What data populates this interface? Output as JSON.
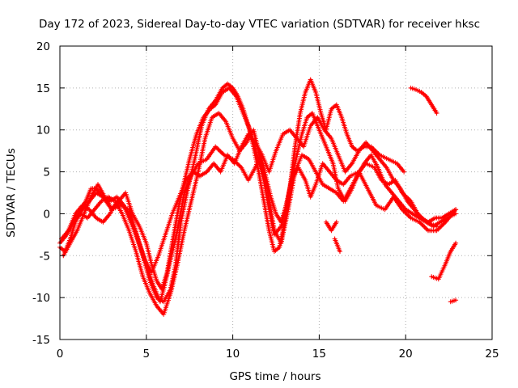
{
  "chart_data": {
    "type": "line",
    "title": "Day 172 of 2023, Sidereal Day-to-day VTEC variation (SDTVAR) for receiver hksc",
    "xlabel": "GPS time / hours",
    "ylabel": "SDTVAR / TECUs",
    "xlim": [
      0,
      25
    ],
    "ylim": [
      -15,
      20
    ],
    "xticks": [
      0,
      5,
      10,
      15,
      20,
      25
    ],
    "yticks": [
      -15,
      -10,
      -5,
      0,
      5,
      10,
      15,
      20
    ],
    "grid": true,
    "marker": "+",
    "color": "#ff0000",
    "series": [
      {
        "name": "track-1",
        "x": [
          0.0,
          0.3,
          0.6,
          0.9,
          1.2,
          1.5,
          1.8,
          2.1,
          2.5,
          3.0,
          3.5,
          4.0,
          4.3,
          4.6,
          5.0,
          5.4,
          5.8,
          6.0,
          6.4,
          6.8,
          7.2,
          7.6,
          8.0,
          8.5,
          9.0,
          9.5,
          10.0,
          10.5,
          10.9,
          11.3,
          11.6,
          11.9,
          12.2,
          12.5,
          12.8,
          13.1,
          13.4,
          13.8,
          14.2,
          14.5,
          14.8,
          15.2,
          15.6,
          16.0,
          16.4,
          16.8,
          17.3,
          17.8,
          18.3,
          18.8,
          19.3,
          19.8,
          20.3,
          20.8,
          21.3,
          21.8,
          22.3,
          22.9
        ],
        "y": [
          -4.0,
          -4.5,
          -3.0,
          -1.0,
          0.5,
          1.5,
          3.0,
          3.0,
          2.0,
          0.5,
          1.0,
          0.5,
          -1.5,
          -3.5,
          -6.0,
          -8.5,
          -10.5,
          -9.0,
          -5.5,
          -2.0,
          2.5,
          4.5,
          6.0,
          6.5,
          8.0,
          7.0,
          6.5,
          5.5,
          4.0,
          5.5,
          7.0,
          4.5,
          2.0,
          0.0,
          -1.0,
          1.0,
          4.0,
          5.5,
          4.0,
          2.0,
          3.5,
          6.0,
          5.0,
          4.0,
          3.5,
          4.5,
          5.0,
          3.0,
          1.0,
          0.5,
          2.0,
          0.5,
          -0.5,
          -1.0,
          -2.0,
          -2.0,
          -1.0,
          0.5
        ]
      },
      {
        "name": "track-2",
        "x": [
          0.0,
          0.4,
          0.8,
          1.2,
          1.6,
          2.0,
          2.4,
          2.8,
          3.2,
          3.6,
          4.0,
          4.4,
          4.8,
          5.2,
          5.6,
          6.0,
          6.4,
          6.8,
          7.2,
          7.6,
          8.0,
          8.4,
          8.8,
          9.2,
          9.6,
          10.0,
          10.4,
          10.8,
          11.2,
          11.6,
          12.0,
          12.4,
          12.8,
          13.2,
          13.6,
          14.0,
          14.4,
          14.8,
          15.2,
          15.6,
          16.0,
          16.4,
          16.8,
          17.2,
          17.6,
          18.0,
          18.4,
          18.8,
          19.2,
          19.6,
          20.0,
          20.4,
          20.8,
          21.2,
          21.6,
          22.0,
          22.4,
          22.9
        ],
        "y": [
          -3.5,
          -2.5,
          -1.0,
          0.0,
          -0.5,
          0.5,
          1.5,
          2.0,
          1.5,
          0.0,
          -2.0,
          -4.5,
          -7.5,
          -9.5,
          -11.0,
          -12.0,
          -9.5,
          -6.0,
          -2.0,
          1.5,
          5.0,
          9.0,
          11.5,
          12.0,
          11.0,
          9.0,
          7.5,
          8.5,
          10.0,
          6.5,
          3.0,
          -2.0,
          -3.5,
          0.5,
          5.0,
          7.0,
          6.5,
          5.0,
          3.5,
          3.0,
          2.5,
          1.5,
          3.0,
          4.5,
          6.0,
          7.0,
          5.5,
          3.5,
          2.5,
          1.5,
          0.5,
          0.0,
          -0.5,
          -1.0,
          -1.5,
          -1.0,
          -0.5,
          0.0
        ]
      },
      {
        "name": "track-3",
        "x": [
          0.2,
          0.6,
          1.0,
          1.4,
          1.8,
          2.2,
          2.6,
          3.0,
          3.4,
          3.8,
          4.2,
          4.6,
          5.0,
          5.3,
          5.6,
          5.9,
          6.2,
          6.5,
          6.8,
          7.1,
          7.5,
          7.9,
          8.3,
          8.7,
          9.0,
          9.4,
          9.8,
          10.2,
          10.6,
          11.0,
          11.4,
          11.8,
          12.1,
          12.4,
          12.8,
          13.2,
          13.6,
          14.0,
          14.3,
          14.6,
          14.9,
          15.2,
          15.5,
          15.8,
          16.1,
          16.5,
          16.9,
          17.3,
          17.7,
          18.2,
          18.6,
          19.0,
          19.4,
          19.8,
          20.3,
          20.7,
          21.2,
          21.8
        ],
        "y": [
          -5.0,
          -3.5,
          -2.0,
          0.0,
          2.0,
          3.5,
          2.0,
          0.5,
          1.5,
          2.5,
          0.0,
          -1.5,
          -3.5,
          -6.0,
          -8.0,
          -9.0,
          -7.0,
          -3.5,
          0.0,
          3.0,
          6.5,
          9.5,
          11.5,
          12.5,
          13.0,
          14.5,
          15.0,
          14.0,
          12.0,
          10.0,
          7.0,
          4.0,
          0.5,
          -2.5,
          -1.5,
          2.0,
          6.0,
          9.5,
          11.5,
          12.0,
          10.5,
          9.0,
          7.5,
          6.0,
          3.0,
          1.5,
          3.0,
          5.0,
          6.0,
          5.5,
          4.0,
          3.5,
          4.0,
          2.5,
          1.5,
          0.0,
          -1.0,
          -1.5
        ]
      },
      {
        "name": "track-4",
        "x": [
          0.5,
          0.9,
          1.3,
          1.7,
          2.1,
          2.5,
          2.9,
          3.3,
          3.7,
          4.0,
          4.4,
          4.8,
          5.2,
          5.6,
          6.0,
          6.4,
          6.7,
          7.0,
          7.4,
          7.8,
          8.2,
          8.6,
          9.0,
          9.4,
          9.7,
          10.0,
          10.3,
          10.6,
          10.9,
          11.2,
          11.5,
          11.8,
          12.1,
          12.4,
          12.7,
          13.0,
          13.3,
          13.6,
          13.9,
          14.2,
          14.5,
          14.8,
          15.1,
          15.4,
          15.7,
          16.0,
          16.3,
          16.6,
          16.9,
          17.2,
          17.6,
          18.0,
          18.5,
          19.0,
          19.5,
          19.9
        ],
        "y": [
          -2.0,
          0.0,
          1.0,
          0.5,
          -0.5,
          -1.0,
          0.0,
          1.5,
          1.0,
          -0.5,
          -2.5,
          -5.0,
          -8.0,
          -10.0,
          -10.5,
          -9.0,
          -6.0,
          -1.0,
          3.0,
          6.5,
          10.5,
          12.5,
          13.5,
          15.0,
          15.5,
          15.0,
          14.0,
          12.5,
          10.5,
          8.0,
          5.0,
          1.5,
          -2.0,
          -4.5,
          -4.0,
          -1.0,
          3.0,
          8.0,
          12.0,
          14.5,
          16.0,
          14.5,
          12.0,
          10.0,
          12.5,
          13.0,
          11.5,
          9.5,
          8.0,
          7.5,
          8.0,
          8.0,
          7.0,
          6.5,
          6.0,
          5.0
        ]
      },
      {
        "name": "track-5",
        "x": [
          0.1,
          0.5,
          0.9,
          1.3,
          1.7,
          2.1,
          2.5,
          2.9,
          3.3,
          3.7,
          4.1,
          4.5,
          4.9,
          5.3,
          5.7,
          6.1,
          6.5,
          6.9,
          7.3,
          7.7,
          8.1,
          8.5,
          8.9,
          9.3,
          9.7,
          10.1,
          10.5,
          10.9,
          11.3,
          11.7,
          12.1,
          12.5,
          12.9,
          13.3,
          13.7,
          14.1,
          14.5,
          14.9,
          15.3,
          15.7,
          16.1,
          16.5,
          16.9,
          17.3,
          17.7,
          18.1,
          18.5,
          18.9,
          19.3,
          19.7,
          20.1,
          20.5,
          20.9,
          21.3,
          21.7,
          22.1,
          22.5,
          22.9
        ],
        "y": [
          -3.0,
          -2.0,
          -0.5,
          0.5,
          1.5,
          2.5,
          2.0,
          1.5,
          2.0,
          1.0,
          -0.5,
          -3.0,
          -5.5,
          -7.0,
          -5.0,
          -2.5,
          0.0,
          2.0,
          4.0,
          5.0,
          4.5,
          5.0,
          6.0,
          5.0,
          7.0,
          6.0,
          8.0,
          9.5,
          8.5,
          7.0,
          5.0,
          7.5,
          9.5,
          10.0,
          9.0,
          8.0,
          10.5,
          11.5,
          10.0,
          9.0,
          7.0,
          5.0,
          6.0,
          7.5,
          8.5,
          7.5,
          6.5,
          5.5,
          4.0,
          3.0,
          1.5,
          0.5,
          -0.5,
          -1.0,
          -0.5,
          -0.5,
          0.0,
          0.5
        ]
      },
      {
        "name": "track-6",
        "x": [
          20.3,
          20.6,
          20.9,
          21.2,
          21.5,
          21.8
        ],
        "y": [
          15.0,
          14.8,
          14.5,
          14.0,
          13.0,
          12.0
        ]
      },
      {
        "name": "track-7",
        "x": [
          21.5,
          21.9,
          22.3,
          22.6,
          22.9
        ],
        "y": [
          -7.5,
          -7.8,
          -6.0,
          -4.5,
          -3.5
        ]
      },
      {
        "name": "track-8",
        "x": [
          22.6,
          22.9
        ],
        "y": [
          -10.5,
          -10.3
        ]
      },
      {
        "name": "track-9",
        "x": [
          15.4,
          15.7,
          16.0
        ],
        "y": [
          -1.0,
          -2.0,
          -1.0
        ]
      },
      {
        "name": "track-10",
        "x": [
          15.9,
          16.2
        ],
        "y": [
          -3.0,
          -4.5
        ]
      }
    ]
  }
}
